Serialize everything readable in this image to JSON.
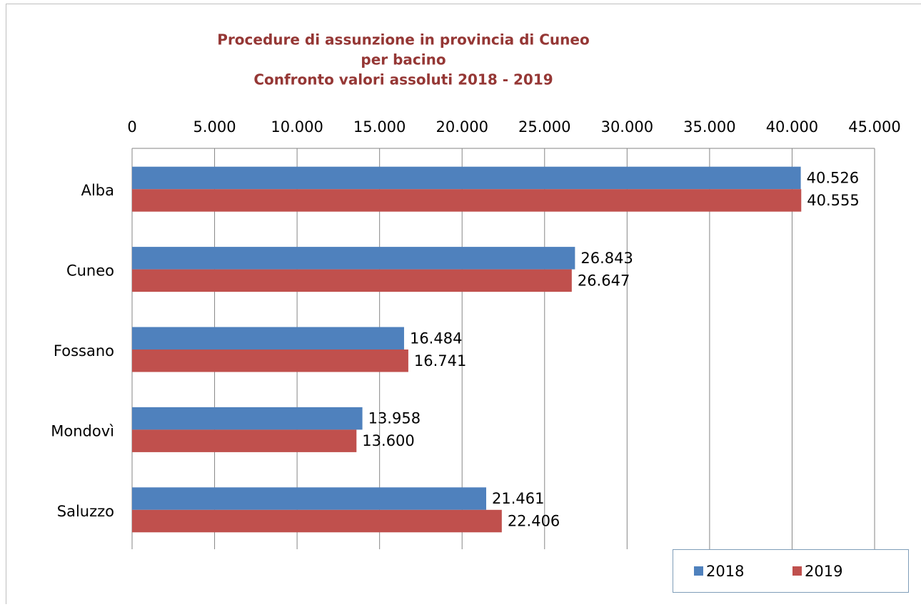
{
  "chart_data": {
    "type": "bar",
    "orientation": "horizontal",
    "title": [
      "Procedure di assunzione in provincia di Cuneo",
      "per bacino",
      "Confronto valori assoluti 2018 - 2019"
    ],
    "categories": [
      "Alba",
      "Cuneo",
      "Fossano",
      "Mondovì",
      "Saluzzo"
    ],
    "series": [
      {
        "name": "2018",
        "color": "#4f81bd",
        "values": [
          40526,
          26843,
          16484,
          13958,
          21461
        ],
        "value_labels": [
          "40.526",
          "26.843",
          "16.484",
          "13.958",
          "21.461"
        ]
      },
      {
        "name": "2019",
        "color": "#c0504d",
        "values": [
          40555,
          26647,
          16741,
          13600,
          22406
        ],
        "value_labels": [
          "40.555",
          "26.647",
          "16.741",
          "13.600",
          "22.406"
        ]
      }
    ],
    "xlim": [
      0,
      45000
    ],
    "xticks": [
      0,
      {
        "value": 5000,
        "label": "5.000"
      },
      {
        "value": 10000,
        "label": "10.000"
      },
      {
        "value": 15000,
        "label": "15.000"
      },
      {
        "value": 20000,
        "label": "20.000"
      },
      {
        "value": 25000,
        "label": "25.000"
      },
      {
        "value": 30000,
        "label": "30.000"
      },
      {
        "value": 35000,
        "label": "35.000"
      },
      {
        "value": 40000,
        "label": "40.000"
      },
      {
        "value": 45000,
        "label": "45.000"
      }
    ],
    "grid": true,
    "legend": "bottom-right"
  }
}
